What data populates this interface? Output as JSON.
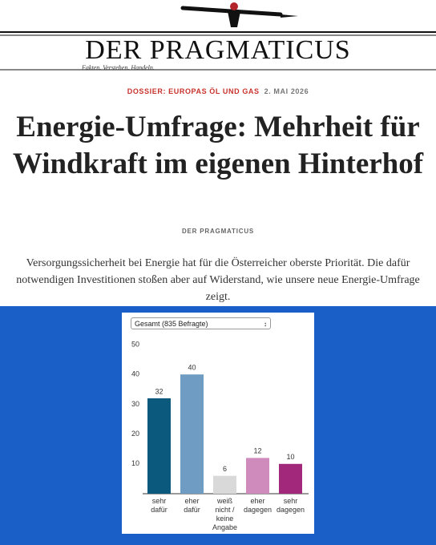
{
  "header": {
    "logo": "DER PRAGMATICUS",
    "tagline": "Fakten. Verstehen. Handeln."
  },
  "article": {
    "dossier": "DOSSIER: EUROPAS ÖL UND GAS",
    "date": "2. MAI 2026",
    "title": "Energie-Umfrage: Mehrheit für Windkraft im eigenen Hinterhof",
    "author": "DER PRAGMATICUS",
    "lead": "Versorgungssicherheit bei Energie hat für die Österreicher oberste Priorität. Die dafür notwendigen Investitionen stoßen aber auf Widerstand, wie unsere neue Energie-Umfrage zeigt."
  },
  "chart_data": {
    "type": "bar",
    "filter": "Gesamt (835 Befragte)",
    "categories": [
      "sehr dafür",
      "eher dafür",
      "weiß nicht / keine Angabe",
      "eher dagegen",
      "sehr dagegen"
    ],
    "values": [
      32,
      40,
      6,
      12,
      10
    ],
    "colors": [
      "#0b5a7e",
      "#6e9cc2",
      "#d9d9d9",
      "#cf8bbb",
      "#a1287a"
    ],
    "ylim": [
      0,
      50
    ],
    "yticks": [
      10,
      20,
      30,
      40,
      50
    ],
    "grid": false
  }
}
